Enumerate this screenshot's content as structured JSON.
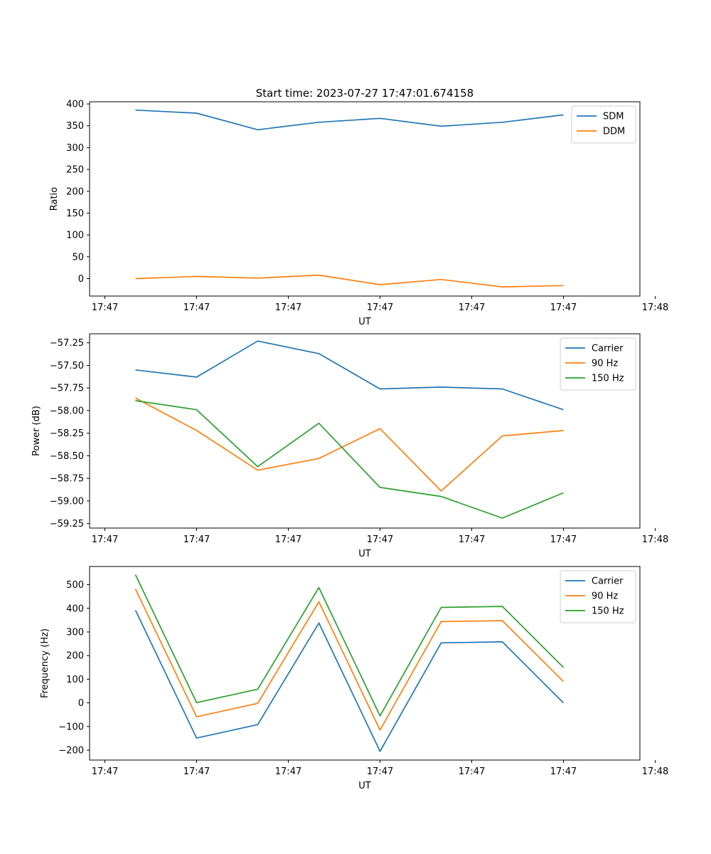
{
  "figure_title": "Start time: 2023-07-27 17:47:01.674158",
  "chart_data": [
    {
      "type": "line",
      "title": "Start time: 2023-07-27 17:47:01.674158",
      "xlabel": "UT",
      "ylabel": "Ratio",
      "x": [
        1.0,
        2.0,
        3.0,
        4.0,
        5.0,
        6.0,
        7.0,
        8.0
      ],
      "xlim": [
        0.25,
        9.25
      ],
      "xticks": [
        0.5,
        2.0,
        3.5,
        5.0,
        6.5,
        8.0,
        9.5
      ],
      "xtick_labels": [
        "17:47",
        "17:47",
        "17:47",
        "17:47",
        "17:47",
        "17:47",
        "17:48"
      ],
      "ylim": [
        -40,
        405
      ],
      "yticks": [
        0,
        50,
        100,
        150,
        200,
        250,
        300,
        350,
        400
      ],
      "ytick_labels": [
        "0",
        "50",
        "100",
        "150",
        "200",
        "250",
        "300",
        "350",
        "400"
      ],
      "legend_position": "top-right",
      "grid": false,
      "series": [
        {
          "name": "SDM",
          "color": "#1f77b4",
          "values": [
            386,
            379,
            341,
            358,
            367,
            349,
            358,
            375
          ]
        },
        {
          "name": "DDM",
          "color": "#ff7f0e",
          "values": [
            0,
            5,
            1,
            8,
            -14,
            -2,
            -19,
            -16
          ]
        }
      ]
    },
    {
      "type": "line",
      "title": "",
      "xlabel": "UT",
      "ylabel": "Power (dB)",
      "x": [
        1.0,
        2.0,
        3.0,
        4.0,
        5.0,
        6.0,
        7.0,
        8.0
      ],
      "xlim": [
        0.25,
        9.25
      ],
      "xticks": [
        0.5,
        2.0,
        3.5,
        5.0,
        6.5,
        8.0,
        9.5
      ],
      "xtick_labels": [
        "17:47",
        "17:47",
        "17:47",
        "17:47",
        "17:47",
        "17:47",
        "17:48"
      ],
      "ylim": [
        -59.3,
        -57.15
      ],
      "yticks": [
        -59.25,
        -59.0,
        -58.75,
        -58.5,
        -58.25,
        -58.0,
        -57.75,
        -57.5,
        -57.25
      ],
      "ytick_labels": [
        "−59.25",
        "−59.00",
        "−58.75",
        "−58.50",
        "−58.25",
        "−58.00",
        "−57.75",
        "−57.50",
        "−57.25"
      ],
      "legend_position": "top-right",
      "grid": false,
      "series": [
        {
          "name": "Carrier",
          "color": "#1f77b4",
          "values": [
            -57.55,
            -57.63,
            -57.23,
            -57.37,
            -57.76,
            -57.74,
            -57.76,
            -57.99
          ]
        },
        {
          "name": "90 Hz",
          "color": "#ff7f0e",
          "values": [
            -57.86,
            -58.22,
            -58.66,
            -58.53,
            -58.2,
            -58.89,
            -58.28,
            -58.22
          ]
        },
        {
          "name": "150 Hz",
          "color": "#2ca02c",
          "values": [
            -57.89,
            -57.99,
            -58.62,
            -58.14,
            -58.85,
            -58.95,
            -59.19,
            -58.91
          ]
        }
      ]
    },
    {
      "type": "line",
      "title": "",
      "xlabel": "UT",
      "ylabel": "Frequency (Hz)",
      "x": [
        1.0,
        2.0,
        3.0,
        4.0,
        5.0,
        6.0,
        7.0,
        8.0
      ],
      "xlim": [
        0.25,
        9.25
      ],
      "xticks": [
        0.5,
        2.0,
        3.5,
        5.0,
        6.5,
        8.0,
        9.5
      ],
      "xtick_labels": [
        "17:47",
        "17:47",
        "17:47",
        "17:47",
        "17:47",
        "17:47",
        "17:48"
      ],
      "ylim": [
        -242,
        577
      ],
      "yticks": [
        -200,
        -100,
        0,
        100,
        200,
        300,
        400,
        500
      ],
      "ytick_labels": [
        "−200",
        "−100",
        "0",
        "100",
        "200",
        "300",
        "400",
        "500"
      ],
      "legend_position": "top-right",
      "grid": false,
      "series": [
        {
          "name": "Carrier",
          "color": "#1f77b4",
          "values": [
            392,
            -149,
            -92,
            338,
            -205,
            254,
            258,
            0
          ]
        },
        {
          "name": "90 Hz",
          "color": "#ff7f0e",
          "values": [
            482,
            -59,
            -2,
            428,
            -115,
            344,
            348,
            90
          ]
        },
        {
          "name": "150 Hz",
          "color": "#2ca02c",
          "values": [
            542,
            1,
            58,
            488,
            -55,
            404,
            408,
            150
          ]
        }
      ]
    }
  ]
}
